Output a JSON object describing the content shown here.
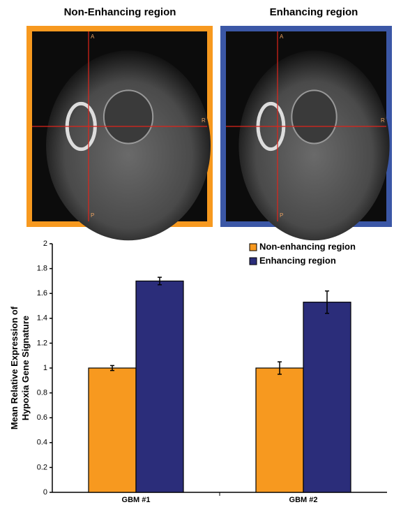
{
  "images": [
    {
      "title": "Non-Enhancing region",
      "frame_color": "#f7991f",
      "labels": [
        "A",
        "R",
        "P"
      ]
    },
    {
      "title": "Enhancing region",
      "frame_color": "#3b57a6",
      "labels": [
        "A",
        "R",
        "P"
      ]
    }
  ],
  "chart_data": {
    "type": "bar",
    "ylabel": [
      "Mean Relative Expression of",
      "Hypoxia Gene Signature"
    ],
    "categories": [
      "GBM #1",
      "GBM #2"
    ],
    "series": [
      {
        "name": "Non-enhancing region",
        "color": "#f7991f",
        "values": [
          1.0,
          1.0
        ],
        "errors": [
          0.02,
          0.05
        ]
      },
      {
        "name": "Enhancing region",
        "color": "#2b2d7a",
        "values": [
          1.7,
          1.53
        ],
        "errors": [
          0.03,
          0.09
        ]
      }
    ],
    "ylim": [
      0,
      2
    ],
    "yticks": [
      0,
      0.2,
      0.4,
      0.6,
      0.8,
      1,
      1.2,
      1.4,
      1.6,
      1.8,
      2
    ],
    "legend": "upper right"
  }
}
